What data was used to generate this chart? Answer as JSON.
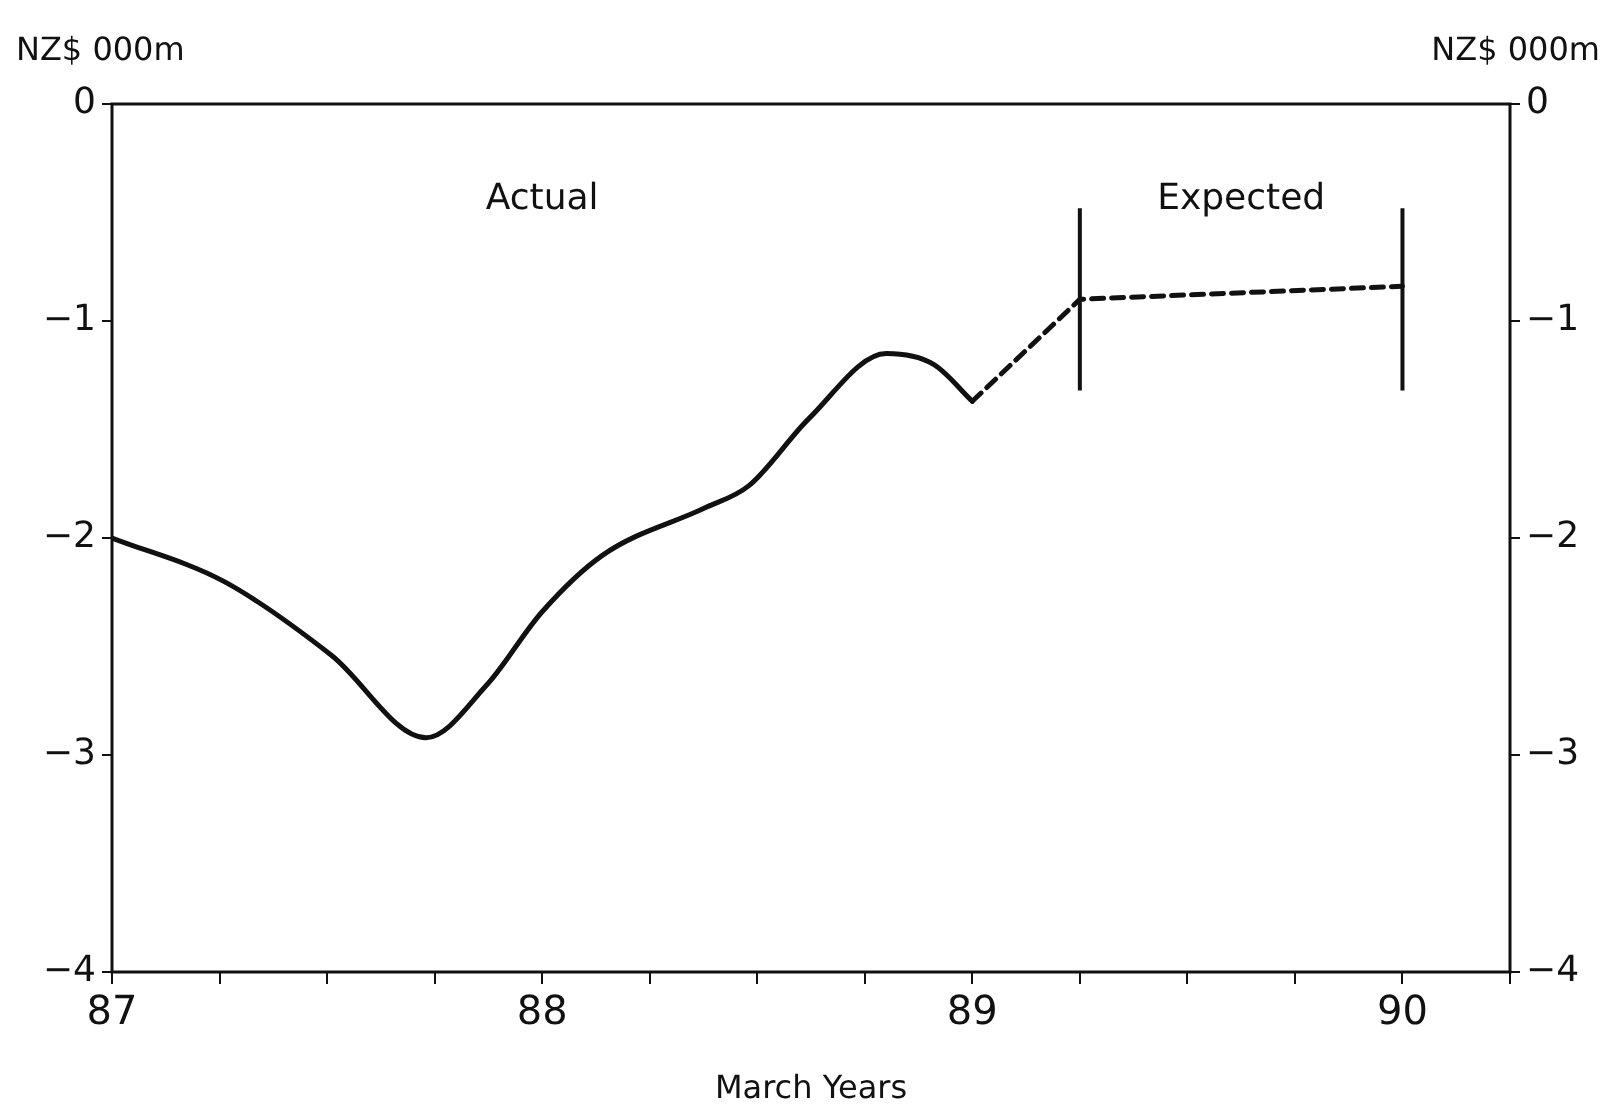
{
  "chart_data": {
    "type": "line",
    "xlabel": "March Years",
    "ylabel": "NZ$ 000m",
    "y2label": "NZ$ 000m",
    "xlim": [
      87,
      90.25
    ],
    "xticks": [
      87,
      {
        "value": 87.25,
        "label": null
      },
      {
        "value": 87.5,
        "label": null
      },
      {
        "value": 87.75,
        "label": null
      },
      88,
      {
        "value": 88.25,
        "label": null
      },
      {
        "value": 88.5,
        "label": null
      },
      {
        "value": 88.75,
        "label": null
      },
      89,
      {
        "value": 89.25,
        "label": null
      },
      {
        "value": 89.5,
        "label": null
      },
      {
        "value": 89.75,
        "label": null
      },
      90,
      {
        "value": 90.25,
        "label": null
      }
    ],
    "ylim": [
      -4,
      0
    ],
    "yticks": [
      -4,
      -3,
      -2,
      -1,
      0
    ],
    "y2lim": [
      -4,
      0
    ],
    "y2ticks": [
      -4,
      -3,
      -2,
      -1,
      0
    ],
    "annotations": [
      "Actual",
      "Expected"
    ],
    "grid": false,
    "legend": false,
    "marker": "none",
    "series": [
      {
        "color": "#111111",
        "line_style": "solid",
        "x": [
          87,
          87.26,
          87.51,
          87.73,
          87.87,
          88.0,
          88.14,
          88.38,
          88.48,
          88.62,
          88.8,
          88.91,
          89.0
        ],
        "values": [
          -2.0,
          -2.2,
          -2.54,
          -2.92,
          -2.68,
          -2.34,
          -2.08,
          -1.86,
          -1.76,
          -1.45,
          -1.15,
          -1.2,
          -1.37
        ]
      },
      {
        "color": "#111111",
        "line_style": "dashed",
        "x": [
          89.0,
          89.25,
          90.0
        ],
        "values": [
          -1.37,
          -0.9,
          -0.84
        ]
      }
    ],
    "ref_lines": [
      {
        "axis": "x",
        "value": 89.25,
        "color": "#111111"
      },
      {
        "axis": "x",
        "value": 90,
        "color": "#111111"
      }
    ]
  }
}
